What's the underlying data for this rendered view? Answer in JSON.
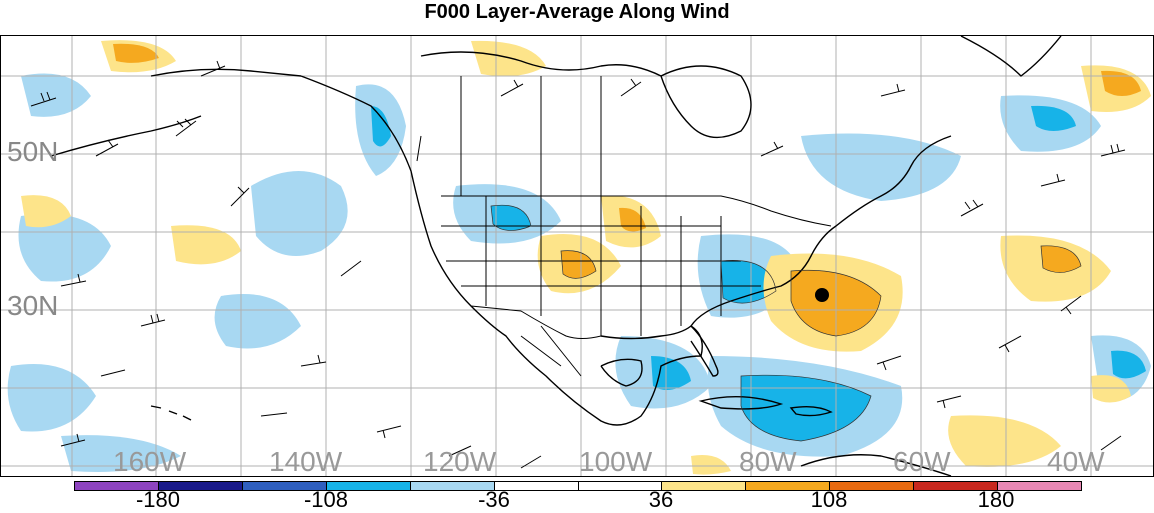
{
  "title": "F000 Layer-Average Along Wind",
  "lat_labels": [
    "50N",
    "30N"
  ],
  "lon_labels": [
    "160W",
    "140W",
    "120W",
    "100W",
    "80W",
    "60W",
    "40W"
  ],
  "colorbar": {
    "colors": [
      "#8e44c0",
      "#1a1a8a",
      "#2f5fbf",
      "#17b3e8",
      "#a8d8f2",
      "#ffffff",
      "#ffffff",
      "#fde48a",
      "#f5a91f",
      "#e86a10",
      "#c8281e",
      "#e888b4"
    ],
    "labels": [
      "-180",
      "-108",
      "-36",
      "36",
      "108",
      "180"
    ]
  },
  "marker": "storm-position-dot"
}
